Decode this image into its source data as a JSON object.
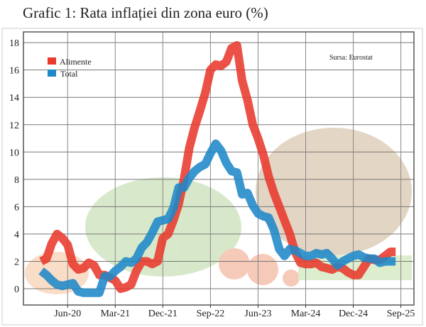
{
  "chart_data": {
    "type": "line",
    "title": "Grafic 1: Rata inflației din zona euro (%)",
    "source": "Sursa: Eurostat",
    "xlabel": "",
    "ylabel": "",
    "ylim": [
      -1,
      18.5
    ],
    "yticks": [
      "0",
      "2",
      "4",
      "6",
      "8",
      "10",
      "12",
      "14",
      "16",
      "18"
    ],
    "xticks": [
      "Jun-20",
      "Mar-21",
      "Dec-21",
      "Sep-22",
      "Jun-23",
      "Mar-24",
      "Dec-24",
      "Sep-25"
    ],
    "xtick_month_index": [
      5,
      14,
      23,
      32,
      41,
      50,
      59,
      68
    ],
    "x_start": "Jan-20",
    "x_end": "Aug-25",
    "grid": true,
    "legend_position": "top-left",
    "series": [
      {
        "name": "Alimente",
        "color": "#e8392c",
        "values": [
          2.0,
          2.2,
          3.3,
          4.0,
          3.7,
          3.2,
          1.8,
          1.4,
          1.5,
          1.9,
          1.7,
          1.0,
          1.0,
          0.8,
          0.6,
          0.0,
          0.1,
          0.3,
          1.3,
          2.0,
          2.0,
          1.8,
          2.0,
          3.7,
          4.0,
          5.0,
          6.2,
          8.0,
          10.3,
          11.8,
          13.0,
          14.3,
          16.0,
          16.4,
          16.3,
          16.6,
          17.6,
          17.8,
          15.2,
          13.8,
          12.0,
          11.0,
          9.8,
          8.2,
          7.0,
          6.0,
          5.0,
          4.0,
          2.7,
          1.9,
          1.8,
          1.8,
          1.9,
          1.6,
          1.5,
          1.4,
          1.6,
          1.5,
          1.2,
          1.0,
          1.0,
          1.6,
          2.2,
          2.1,
          2.1,
          2.4,
          2.7,
          2.7
        ]
      },
      {
        "name": "Total",
        "color": "#1e88c8",
        "values": [
          1.3,
          1.0,
          0.6,
          0.3,
          0.2,
          0.3,
          0.4,
          -0.2,
          -0.3,
          -0.3,
          -0.3,
          -0.3,
          0.9,
          0.9,
          1.3,
          1.6,
          2.0,
          1.9,
          2.2,
          3.0,
          3.4,
          4.1,
          4.9,
          5.0,
          5.1,
          5.9,
          7.4,
          7.4,
          8.1,
          8.6,
          8.9,
          9.1,
          9.9,
          10.6,
          10.1,
          9.2,
          8.6,
          8.5,
          6.9,
          7.0,
          6.1,
          5.5,
          5.3,
          5.2,
          4.3,
          2.9,
          2.4,
          2.9,
          2.8,
          2.6,
          2.4,
          2.4,
          2.6,
          2.5,
          2.6,
          2.2,
          1.7,
          2.0,
          2.2,
          2.4,
          2.5,
          2.3,
          2.2,
          2.2,
          1.9,
          2.0,
          2.0,
          2.0
        ]
      }
    ]
  }
}
